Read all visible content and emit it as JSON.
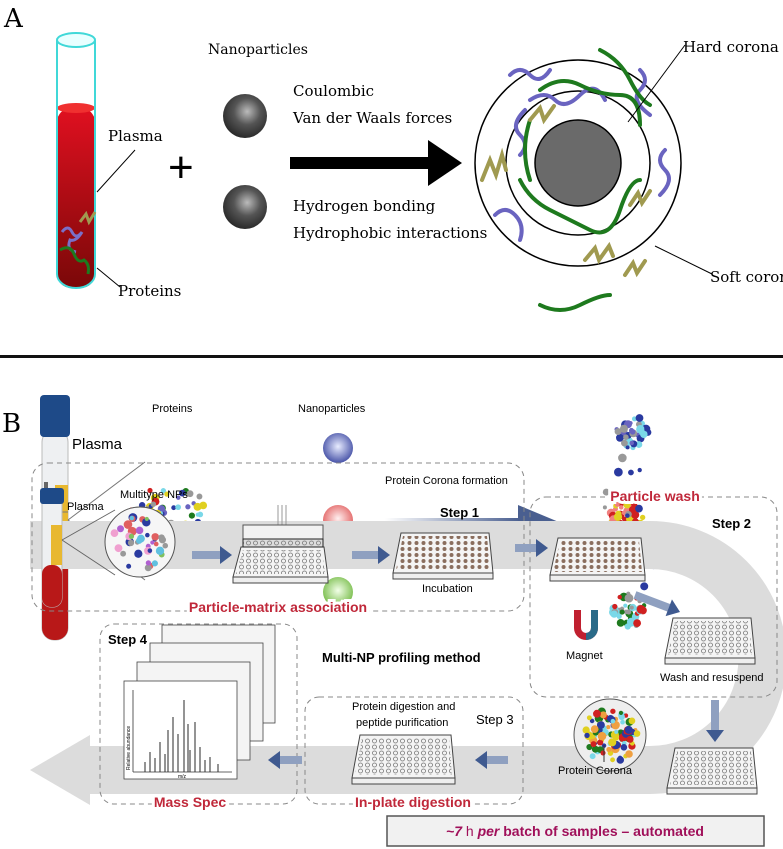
{
  "panel_a": {
    "label": "A",
    "plasma": "Plasma",
    "proteins": "Proteins",
    "plus": "+",
    "nanoparticles": "Nanoparticles",
    "forces": [
      "Coulombic",
      "Van der Waals forces",
      "Hydrogen bonding",
      "Hydrophobic interactions"
    ],
    "hard_corona": "Hard corona",
    "soft_corona": "Soft corona"
  },
  "panel_b": {
    "label": "B",
    "plasma": "Plasma",
    "proteins": "Proteins",
    "plus": "+",
    "nanoparticles": "Nanoparticles",
    "np_colors": [
      "#4a56b0",
      "#f07878",
      "#8fd060"
    ],
    "arrow_label": "Protein Corona formation"
  },
  "workflow": {
    "plasma": "Plasma",
    "multitype_nps": "Multitype NPs",
    "step1": "Step 1",
    "step1_title": "Particle-matrix association",
    "incubation": "Incubation",
    "step2": "Step 2",
    "step2_title": "Particle wash",
    "magnet": "Magnet",
    "wash": "Wash and resuspend",
    "protein_corona": "Protein Corona",
    "center_title": "Multi-NP profiling method",
    "step3": "Step 3",
    "step3_title": "In-plate digestion",
    "digestion_line1": "Protein digestion and",
    "digestion_line2": "peptide purification",
    "step4": "Step 4",
    "step4_title": "Mass Spec",
    "ms_ylabel": "Relative abundance",
    "ms_xlabel": "m/z",
    "footer": {
      "time": "~7",
      "unit": "h",
      "per": "per",
      "rest": "batch of samples – automated"
    },
    "accent_color": "#c0283a"
  }
}
